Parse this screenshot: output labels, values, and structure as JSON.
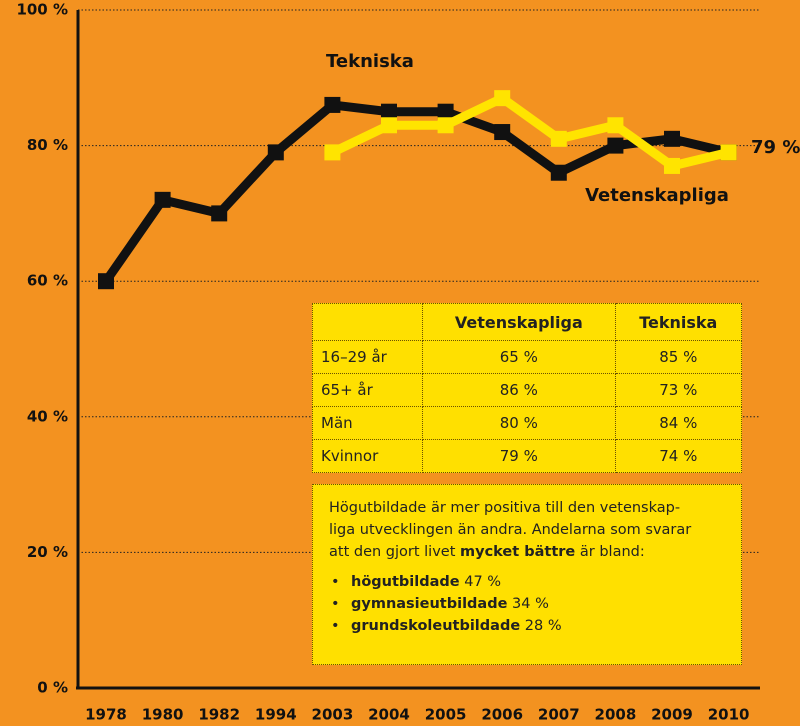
{
  "chart_data": {
    "type": "line",
    "categories": [
      "1978",
      "1980",
      "1982",
      "1994",
      "2003",
      "2004",
      "2005",
      "2006",
      "2007",
      "2008",
      "2009",
      "2010"
    ],
    "series": [
      {
        "name": "Tekniska",
        "color": "#111111",
        "values": [
          60,
          72,
          70,
          79,
          86,
          85,
          85,
          82,
          76,
          80,
          81,
          79
        ]
      },
      {
        "name": "Vetenskapliga",
        "color": "#FFE400",
        "values": [
          null,
          null,
          null,
          null,
          79,
          83,
          83,
          87,
          81,
          83,
          77,
          79
        ]
      }
    ],
    "annotations": [
      "79 %"
    ],
    "ylim": [
      0,
      100
    ],
    "yticks": [
      {
        "value": 0,
        "label": "0 %"
      },
      {
        "value": 20,
        "label": "20 %"
      },
      {
        "value": 40,
        "label": "40 %"
      },
      {
        "value": 60,
        "label": "60 %"
      },
      {
        "value": 80,
        "label": "80 %"
      },
      {
        "value": 100,
        "label": "100 %"
      }
    ],
    "grid": true
  },
  "table": {
    "header": [
      "Vetenskapliga",
      "Tekniska"
    ],
    "rows": [
      [
        "16–29 år",
        "65 %",
        "85 %"
      ],
      [
        "65+ år",
        "86 %",
        "73 %"
      ],
      [
        "Män",
        "80 %",
        "84 %"
      ],
      [
        "Kvinnor",
        "79 %",
        "74 %"
      ]
    ]
  },
  "note": {
    "lines": [
      "Högutbildade är mer positiva till den vetenskap-",
      "liga utvecklingen än andra. Andelarna som svarar"
    ],
    "lead": "att den gjort livet",
    "emphasis": "mycket bättre",
    "tail": "är bland:",
    "items": [
      {
        "label": "högutbildade",
        "value": "47 %"
      },
      {
        "label": "gymnasieutbildade",
        "value": "34 %"
      },
      {
        "label": "grundskoleutbildade",
        "value": "28 %"
      }
    ]
  }
}
